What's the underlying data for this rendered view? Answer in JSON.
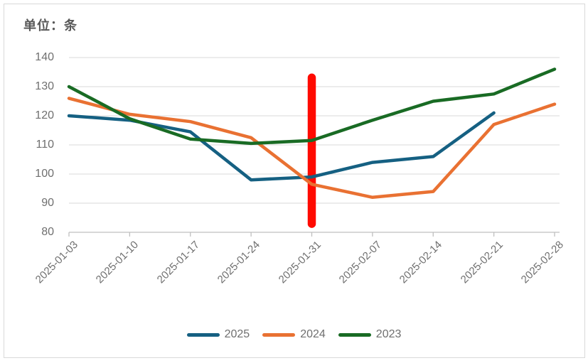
{
  "chart_title": "单位：条",
  "chart_data": {
    "type": "line",
    "title": "单位：条",
    "categories": [
      "2025-01-03",
      "2025-01-10",
      "2025-01-17",
      "2025-01-24",
      "2025-01-31",
      "2025-02-07",
      "2025-02-14",
      "2025-02-21",
      "2025-02-28"
    ],
    "series": [
      {
        "name": "2025",
        "color": "#156082",
        "values": [
          120,
          118.5,
          114.5,
          98,
          99,
          104,
          106,
          121,
          null
        ]
      },
      {
        "name": "2024",
        "color": "#E97132",
        "values": [
          126,
          120.5,
          118,
          112.5,
          96.5,
          92,
          94,
          117,
          124
        ]
      },
      {
        "name": "2023",
        "color": "#196B24",
        "values": [
          130,
          119,
          112,
          110.5,
          111.5,
          118.5,
          125,
          127.5,
          136
        ]
      }
    ],
    "xlabel": "",
    "ylabel": "",
    "ylim": [
      80,
      140
    ],
    "yticks": [
      140,
      130,
      120,
      110,
      100,
      90,
      80
    ],
    "grid": "horizontal-only",
    "legend_position": "bottom",
    "legend": [
      "2025",
      "2024",
      "2023"
    ],
    "annotation": {
      "type": "vertical-highlight-bar",
      "category": "2025-01-31",
      "color": "#FF0A00",
      "value_span": [
        81.5,
        134.5
      ]
    }
  },
  "styles": {
    "background": "#FFFFFF",
    "frame_color": "#D9D9D9",
    "grid_color": "#D9D9D9",
    "axis_color": "#BFBFBF",
    "label_color": "#6F6F6F",
    "title_color": "#595959"
  }
}
